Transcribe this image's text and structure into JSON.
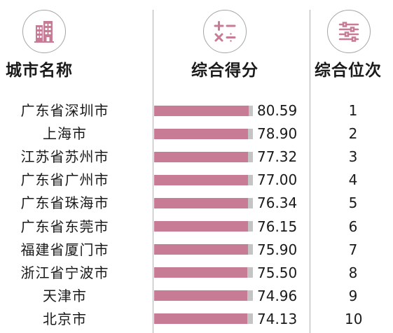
{
  "icons": {
    "city": "building-icon",
    "score": "math-operators-icon",
    "rank": "sliders-icon"
  },
  "headers": {
    "city": "城市名称",
    "score": "综合得分",
    "rank": "综合位次"
  },
  "colors": {
    "accent": "#c77b94",
    "bar_track": "#c4c4c4",
    "divider": "#b0b0b0"
  },
  "chart_data": {
    "type": "bar",
    "orientation": "horizontal",
    "categories": [
      "广东省深圳市",
      "上海市",
      "江苏省苏州市",
      "广东省广州市",
      "广东省珠海市",
      "广东省东莞市",
      "福建省厦门市",
      "浙江省宁波市",
      "天津市",
      "北京市"
    ],
    "values": [
      80.59,
      78.9,
      77.32,
      77.0,
      76.34,
      76.15,
      75.9,
      75.5,
      74.96,
      74.13
    ],
    "value_labels": [
      "80.59",
      "78.90",
      "77.32",
      "77.00",
      "76.34",
      "76.15",
      "75.90",
      "75.50",
      "74.96",
      "74.13"
    ],
    "ranks": [
      "1",
      "2",
      "3",
      "4",
      "5",
      "6",
      "7",
      "8",
      "9",
      "10"
    ],
    "title": "",
    "xlabel": "",
    "ylabel": ""
  }
}
